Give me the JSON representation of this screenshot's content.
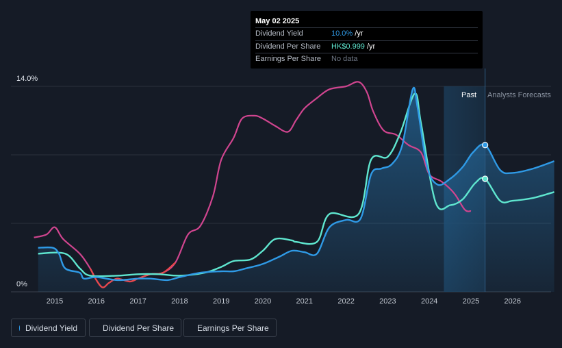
{
  "tooltip": {
    "date": "May 02 2025",
    "rows": [
      {
        "label": "Dividend Yield",
        "value": "10.0%",
        "unit": " /yr"
      },
      {
        "label": "Dividend Per Share",
        "value": "HK$0.999",
        "unit": " /yr"
      },
      {
        "label": "Earnings Per Share",
        "value": "No data",
        "unit": ""
      }
    ]
  },
  "regions": {
    "past": "Past",
    "forecast": "Analysts Forecasts"
  },
  "legend": [
    {
      "label": "Dividend Yield",
      "color": "#2f9ae6"
    },
    {
      "label": "Dividend Per Share",
      "color": "#5fe6cf"
    },
    {
      "label": "Earnings Per Share",
      "color": "#d0458f"
    }
  ],
  "chart_data": {
    "type": "line",
    "y_axis_labels": [
      "14.0%",
      "0%"
    ],
    "ylim": [
      0,
      14
    ],
    "xlim": [
      2014.4,
      2027.0
    ],
    "x_ticks": [
      "2015",
      "2016",
      "2017",
      "2018",
      "2019",
      "2020",
      "2021",
      "2022",
      "2023",
      "2024",
      "2025",
      "2026"
    ],
    "past_forecast_split": 2025.34,
    "series": [
      {
        "name": "Dividend Yield",
        "color": "#2f9ae6",
        "points": [
          [
            2014.6,
            3.0
          ],
          [
            2014.95,
            3.0
          ],
          [
            2015.1,
            2.6
          ],
          [
            2015.25,
            1.6
          ],
          [
            2015.6,
            1.3
          ],
          [
            2015.7,
            0.9
          ],
          [
            2016.0,
            1.0
          ],
          [
            2016.5,
            0.8
          ],
          [
            2017.0,
            0.9
          ],
          [
            2017.3,
            0.9
          ],
          [
            2017.7,
            0.8
          ],
          [
            2018.0,
            1.0
          ],
          [
            2018.5,
            1.3
          ],
          [
            2019.0,
            1.4
          ],
          [
            2019.3,
            1.4
          ],
          [
            2019.6,
            1.6
          ],
          [
            2020.0,
            1.9
          ],
          [
            2020.4,
            2.4
          ],
          [
            2020.7,
            2.8
          ],
          [
            2021.0,
            2.7
          ],
          [
            2021.3,
            2.6
          ],
          [
            2021.6,
            4.4
          ],
          [
            2022.0,
            4.9
          ],
          [
            2022.35,
            5.0
          ],
          [
            2022.6,
            8.0
          ],
          [
            2022.85,
            8.4
          ],
          [
            2023.1,
            8.7
          ],
          [
            2023.35,
            10.0
          ],
          [
            2023.6,
            13.8
          ],
          [
            2023.72,
            12.5
          ],
          [
            2023.95,
            8.5
          ],
          [
            2024.2,
            7.3
          ],
          [
            2024.5,
            7.7
          ],
          [
            2024.8,
            8.5
          ],
          [
            2025.05,
            9.5
          ],
          [
            2025.34,
            10.0
          ],
          [
            2025.7,
            8.3
          ],
          [
            2026.0,
            8.1
          ],
          [
            2026.5,
            8.4
          ],
          [
            2027.0,
            8.9
          ]
        ]
      },
      {
        "name": "Dividend Per Share",
        "color": "#5fe6cf",
        "points": [
          [
            2014.6,
            2.6
          ],
          [
            2015.25,
            2.6
          ],
          [
            2015.6,
            1.6
          ],
          [
            2015.85,
            1.1
          ],
          [
            2016.5,
            1.1
          ],
          [
            2017.0,
            1.2
          ],
          [
            2017.5,
            1.2
          ],
          [
            2018.0,
            1.1
          ],
          [
            2018.6,
            1.3
          ],
          [
            2019.0,
            1.7
          ],
          [
            2019.3,
            2.1
          ],
          [
            2019.7,
            2.2
          ],
          [
            2020.0,
            2.8
          ],
          [
            2020.3,
            3.6
          ],
          [
            2020.7,
            3.5
          ],
          [
            2020.8,
            3.4
          ],
          [
            2021.3,
            3.4
          ],
          [
            2021.6,
            5.3
          ],
          [
            2022.3,
            5.3
          ],
          [
            2022.6,
            9.0
          ],
          [
            2023.0,
            9.2
          ],
          [
            2023.3,
            10.8
          ],
          [
            2023.65,
            13.5
          ],
          [
            2023.8,
            11.5
          ],
          [
            2024.15,
            6.1
          ],
          [
            2024.5,
            5.9
          ],
          [
            2024.8,
            6.3
          ],
          [
            2025.1,
            7.4
          ],
          [
            2025.34,
            7.7
          ],
          [
            2025.7,
            6.2
          ],
          [
            2026.0,
            6.2
          ],
          [
            2026.5,
            6.4
          ],
          [
            2027.0,
            6.8
          ]
        ]
      },
      {
        "name": "Earnings Per Share",
        "color": "#d0458f",
        "points": [
          [
            2014.5,
            3.7
          ],
          [
            2014.8,
            3.9
          ],
          [
            2015.0,
            4.4
          ],
          [
            2015.2,
            3.6
          ],
          [
            2015.6,
            2.6
          ],
          [
            2015.85,
            1.6
          ],
          [
            2016.0,
            0.8
          ],
          [
            2016.15,
            0.3
          ],
          [
            2016.3,
            0.6
          ],
          [
            2016.5,
            0.9
          ],
          [
            2016.8,
            0.7
          ],
          [
            2017.0,
            0.9
          ],
          [
            2017.3,
            1.2
          ],
          [
            2017.6,
            1.3
          ],
          [
            2017.9,
            2.0
          ],
          [
            2018.2,
            3.9
          ],
          [
            2018.5,
            4.5
          ],
          [
            2018.8,
            6.5
          ],
          [
            2019.0,
            9.0
          ],
          [
            2019.3,
            10.5
          ],
          [
            2019.5,
            11.8
          ],
          [
            2019.8,
            12.0
          ],
          [
            2020.0,
            11.8
          ],
          [
            2020.3,
            11.3
          ],
          [
            2020.6,
            10.9
          ],
          [
            2020.8,
            11.7
          ],
          [
            2021.0,
            12.5
          ],
          [
            2021.3,
            13.2
          ],
          [
            2021.6,
            13.8
          ],
          [
            2022.0,
            14.0
          ],
          [
            2022.3,
            14.3
          ],
          [
            2022.5,
            13.6
          ],
          [
            2022.65,
            12.3
          ],
          [
            2022.9,
            11.0
          ],
          [
            2023.2,
            10.7
          ],
          [
            2023.5,
            10.0
          ],
          [
            2023.8,
            9.5
          ],
          [
            2024.0,
            8.0
          ],
          [
            2024.3,
            7.5
          ],
          [
            2024.6,
            6.7
          ],
          [
            2024.85,
            5.6
          ],
          [
            2025.0,
            5.5
          ]
        ]
      }
    ]
  }
}
